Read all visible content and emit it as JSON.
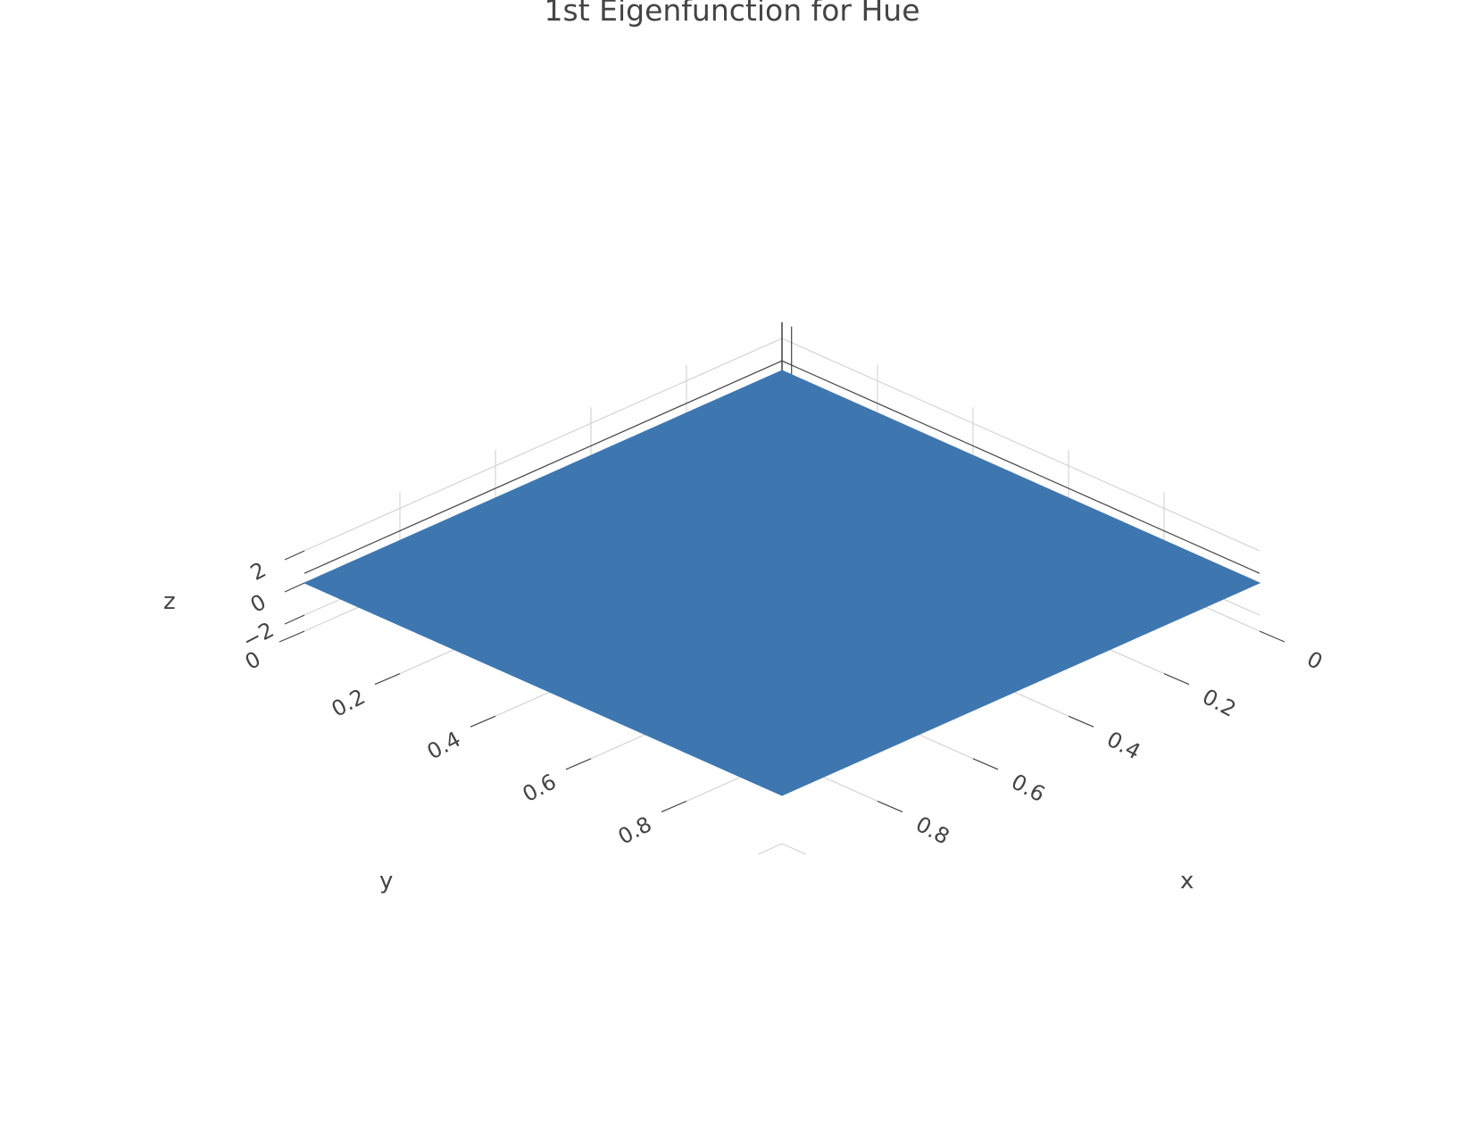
{
  "chart_data": {
    "type": "surface",
    "title": "1st Eigenfunction for Hue",
    "xlabel": "x",
    "ylabel": "y",
    "zlabel": "z",
    "x_ticks": [
      "0",
      "0.2",
      "0.4",
      "0.6",
      "0.8"
    ],
    "y_ticks": [
      "0",
      "0.2",
      "0.4",
      "0.6",
      "0.8"
    ],
    "z_ticks": [
      "2",
      "0",
      "−2"
    ],
    "x_range": [
      0,
      1
    ],
    "y_range": [
      0,
      1
    ],
    "z_range": [
      -3,
      3
    ],
    "surface": {
      "x": [
        0,
        1
      ],
      "y": [
        0,
        1
      ],
      "z": [
        [
          0,
          0
        ],
        [
          0,
          0
        ]
      ]
    },
    "surface_color": "#3e77b0",
    "grid": true
  }
}
